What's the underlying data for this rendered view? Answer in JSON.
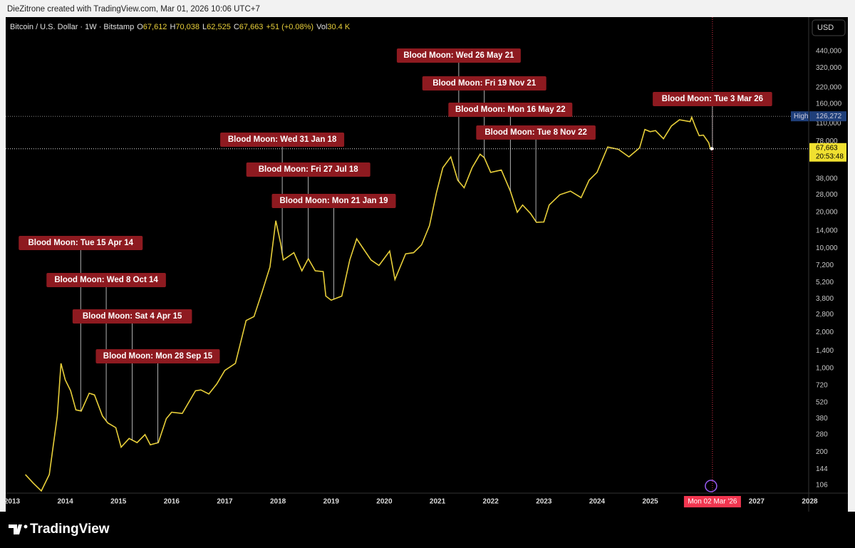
{
  "header": {
    "credit": "DieZitrone created with TradingView.com, Mar 01, 2026 10:06 UTC+7",
    "symbol": "Bitcoin / U.S. Dollar · 1W · Bitstamp",
    "ohlc": [
      {
        "label": "O",
        "value": "67,612"
      },
      {
        "label": "H",
        "value": "70,038"
      },
      {
        "label": "L",
        "value": "62,525"
      },
      {
        "label": "C",
        "value": "67,663"
      }
    ],
    "change": "+51 (+0.08%)",
    "volume": {
      "label": "Vol",
      "value": "30.4 K"
    }
  },
  "chart_data": {
    "type": "line",
    "color": "#e8cf3a",
    "log": true,
    "grid": false,
    "x": [
      2013.25,
      2013.4,
      2013.55,
      2013.7,
      2013.85,
      2013.92,
      2014.0,
      2014.1,
      2014.2,
      2014.3,
      2014.45,
      2014.55,
      2014.7,
      2014.8,
      2014.95,
      2015.05,
      2015.2,
      2015.35,
      2015.5,
      2015.6,
      2015.75,
      2015.9,
      2016.0,
      2016.2,
      2016.45,
      2016.55,
      2016.7,
      2016.85,
      2017.0,
      2017.2,
      2017.4,
      2017.55,
      2017.7,
      2017.85,
      2017.96,
      2018.05,
      2018.1,
      2018.3,
      2018.45,
      2018.57,
      2018.7,
      2018.85,
      2018.9,
      2019.0,
      2019.2,
      2019.35,
      2019.48,
      2019.6,
      2019.75,
      2019.9,
      2020.1,
      2020.2,
      2020.4,
      2020.55,
      2020.7,
      2020.85,
      2020.98,
      2021.1,
      2021.25,
      2021.38,
      2021.5,
      2021.65,
      2021.8,
      2021.88,
      2022.0,
      2022.2,
      2022.37,
      2022.5,
      2022.6,
      2022.75,
      2022.86,
      2023.0,
      2023.1,
      2023.3,
      2023.5,
      2023.7,
      2023.85,
      2024.0,
      2024.2,
      2024.4,
      2024.6,
      2024.8,
      2024.9,
      2025.0,
      2025.1,
      2025.25,
      2025.4,
      2025.55,
      2025.75,
      2025.78,
      2025.85,
      2025.92,
      2026.0,
      2026.1,
      2026.13,
      2026.16
    ],
    "values": [
      130,
      110,
      95,
      130,
      400,
      1100,
      800,
      650,
      450,
      440,
      620,
      600,
      400,
      350,
      320,
      220,
      260,
      240,
      280,
      230,
      240,
      380,
      430,
      420,
      650,
      660,
      610,
      740,
      960,
      1100,
      2500,
      2700,
      4300,
      7000,
      17000,
      11000,
      8000,
      9200,
      6500,
      8200,
      6500,
      6400,
      4000,
      3700,
      4000,
      8000,
      12000,
      10000,
      8000,
      7200,
      9500,
      5500,
      9000,
      9200,
      10700,
      15500,
      29000,
      47000,
      58000,
      37000,
      32000,
      47000,
      61000,
      57000,
      43000,
      45000,
      30000,
      20000,
      23000,
      19500,
      16500,
      16600,
      23000,
      28000,
      30000,
      26500,
      37000,
      43000,
      70000,
      67000,
      58000,
      69000,
      98000,
      94000,
      96000,
      82000,
      105000,
      118000,
      114000,
      124000,
      103000,
      87000,
      88000,
      76000,
      68000,
      67663
    ],
    "xlim": [
      2012.88,
      2027.98
    ],
    "xticks": [
      2013,
      2014,
      2015,
      2016,
      2017,
      2018,
      2019,
      2020,
      2021,
      2022,
      2023,
      2024,
      2025,
      2026,
      2027,
      2028
    ],
    "ylim": [
      91,
      848000
    ],
    "yticks": [
      {
        "value": 440000,
        "label": "440,000"
      },
      {
        "value": 320000,
        "label": "320,000"
      },
      {
        "value": 220000,
        "label": "220,000"
      },
      {
        "value": 160000,
        "label": "160,000"
      },
      {
        "value": 110000,
        "label": "110,000"
      },
      {
        "value": 78000,
        "label": "78,000"
      },
      {
        "value": 38000,
        "label": "38,000"
      },
      {
        "value": 28000,
        "label": "28,000"
      },
      {
        "value": 20000,
        "label": "20,000"
      },
      {
        "value": 14000,
        "label": "14,000"
      },
      {
        "value": 10000,
        "label": "10,000"
      },
      {
        "value": 7200,
        "label": "7,200"
      },
      {
        "value": 5200,
        "label": "5,200"
      },
      {
        "value": 3800,
        "label": "3,800"
      },
      {
        "value": 2800,
        "label": "2,800"
      },
      {
        "value": 2000,
        "label": "2,000"
      },
      {
        "value": 1400,
        "label": "1,400"
      },
      {
        "value": 1000,
        "label": "1,000"
      },
      720,
      520,
      380,
      280,
      200,
      144,
      106
    ],
    "currency": "USD",
    "high": {
      "label": "High",
      "value": 126272,
      "value_label": "126,272"
    },
    "last": {
      "value": 67663,
      "value_label": "67,663",
      "countdown": "20:53:48"
    },
    "cursor": {
      "x": 2026.17,
      "label": "Mon 02 Mar '26"
    },
    "annotations": [
      {
        "text": "Blood Moon: Tue 15 Apr 14",
        "x": 2014.29
      },
      {
        "text": "Blood Moon: Wed 8 Oct 14",
        "x": 2014.77
      },
      {
        "text": "Blood Moon: Sat 4 Apr 15",
        "x": 2015.26
      },
      {
        "text": "Blood Moon: Mon 28 Sep 15",
        "x": 2015.74
      },
      {
        "text": "Blood Moon: Wed 31 Jan 18",
        "x": 2018.08
      },
      {
        "text": "Blood Moon: Fri 27 Jul 18",
        "x": 2018.57
      },
      {
        "text": "Blood Moon: Mon 21 Jan 19",
        "x": 2019.05
      },
      {
        "text": "Blood Moon: Wed 26 May 21",
        "x": 2021.4
      },
      {
        "text": "Blood Moon: Fri 19 Nov 21",
        "x": 2021.88
      },
      {
        "text": "Blood Moon: Mon 16 May 22",
        "x": 2022.37
      },
      {
        "text": "Blood Moon: Tue 8 Nov 22",
        "x": 2022.85
      },
      {
        "text": "Blood Moon: Tue 3 Mar 26",
        "x": 2026.17
      }
    ]
  },
  "footer": {
    "brand": "TradingView"
  }
}
